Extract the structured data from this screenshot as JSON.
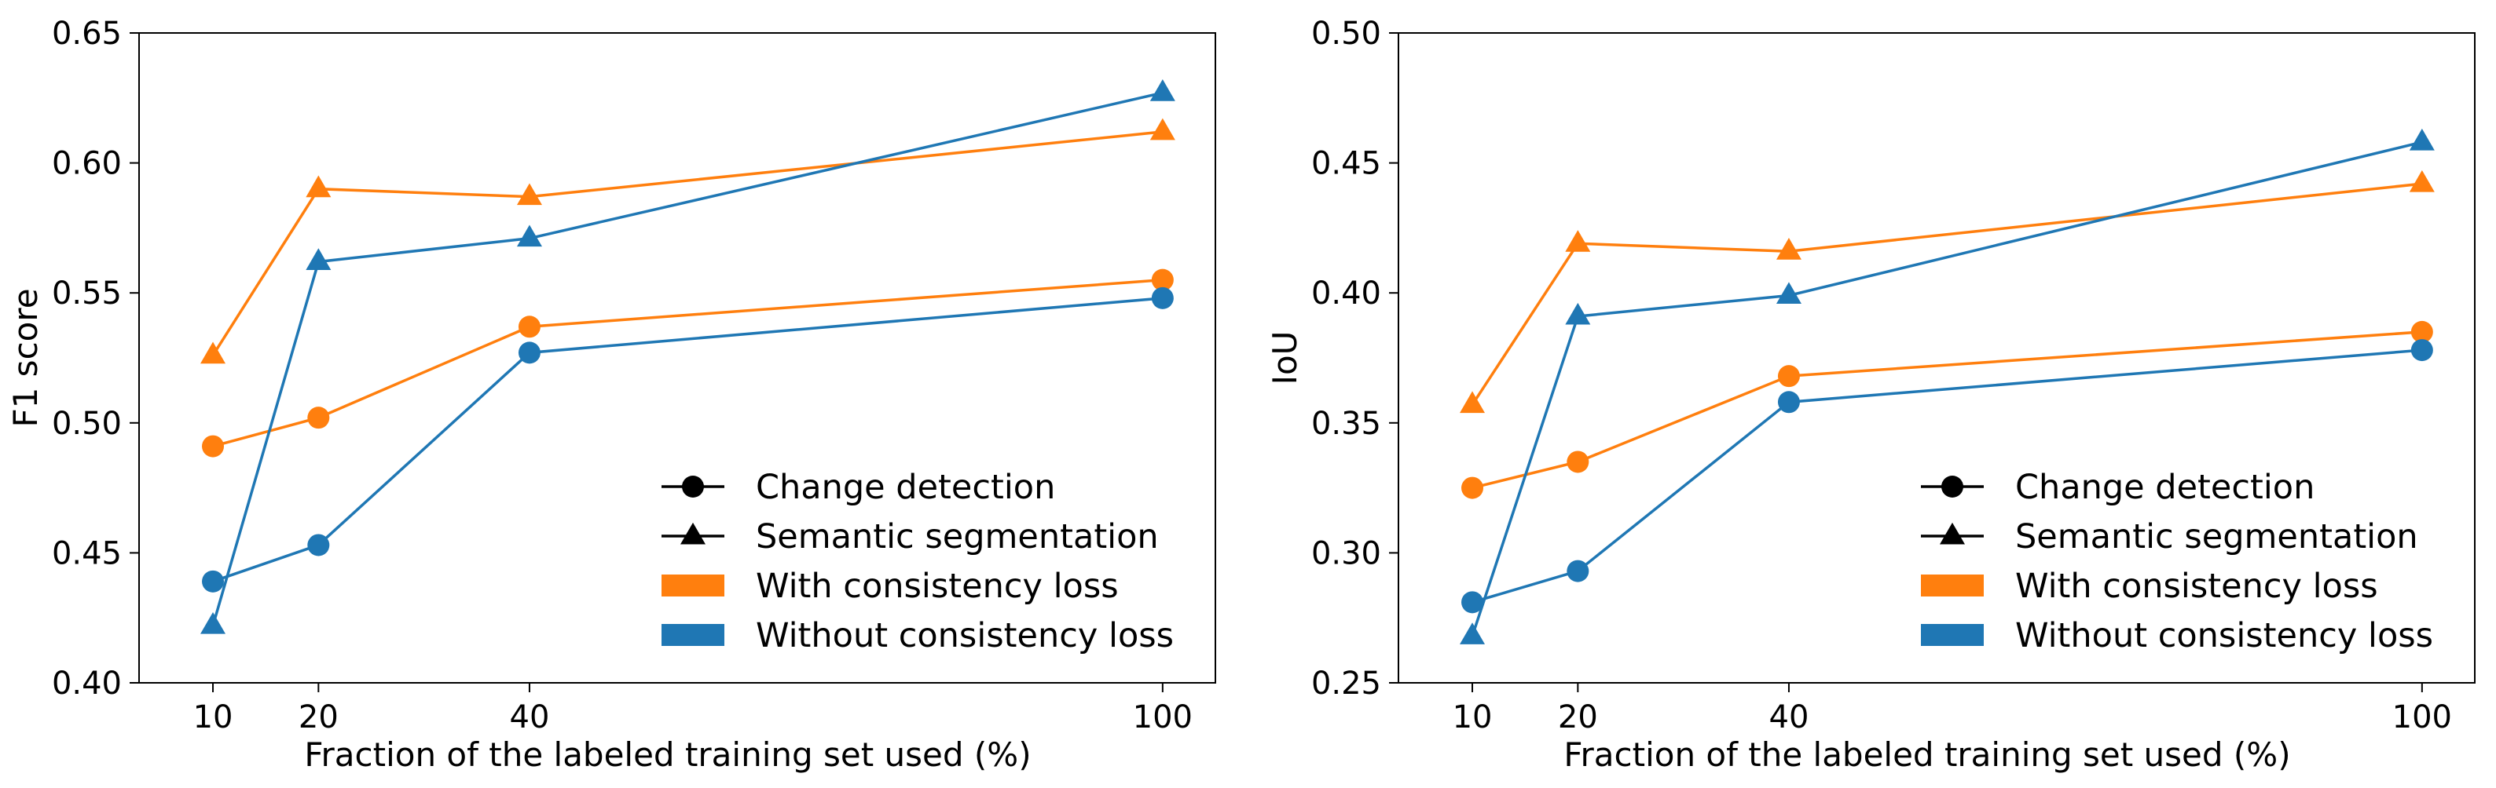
{
  "chart_data": [
    {
      "type": "line",
      "xlabel": "Fraction of the labeled training set used (%)",
      "ylabel": "F1 score",
      "x": [
        10,
        20,
        40,
        100
      ],
      "xticks": [
        "10",
        "20",
        "40",
        "100"
      ],
      "xlim": [
        3,
        105
      ],
      "ylim": [
        0.4,
        0.65
      ],
      "yticks": [
        "0.40",
        "0.45",
        "0.50",
        "0.55",
        "0.60",
        "0.65"
      ],
      "grid": false,
      "legend_position": "bottom-right",
      "series": [
        {
          "name": "Change detection, with consistency loss",
          "task": "change",
          "variant": "with",
          "values": [
            0.491,
            0.502,
            0.537,
            0.555
          ]
        },
        {
          "name": "Change detection, without consistency loss",
          "task": "change",
          "variant": "without",
          "values": [
            0.439,
            0.453,
            0.527,
            0.548
          ]
        },
        {
          "name": "Semantic segmentation, with consistency loss",
          "task": "semseg",
          "variant": "with",
          "values": [
            0.526,
            0.59,
            0.587,
            0.612
          ]
        },
        {
          "name": "Semantic segmentation, without consistency loss",
          "task": "semseg",
          "variant": "without",
          "values": [
            0.422,
            0.562,
            0.571,
            0.627
          ]
        }
      ]
    },
    {
      "type": "line",
      "xlabel": "Fraction of the labeled training set used (%)",
      "ylabel": "IoU",
      "x": [
        10,
        20,
        40,
        100
      ],
      "xticks": [
        "10",
        "20",
        "40",
        "100"
      ],
      "xlim": [
        3,
        105
      ],
      "ylim": [
        0.25,
        0.5
      ],
      "yticks": [
        "0.25",
        "0.30",
        "0.35",
        "0.40",
        "0.45",
        "0.50"
      ],
      "grid": false,
      "legend_position": "bottom-right",
      "series": [
        {
          "name": "Change detection, with consistency loss",
          "task": "change",
          "variant": "with",
          "values": [
            0.325,
            0.335,
            0.368,
            0.385
          ]
        },
        {
          "name": "Change detection, without consistency loss",
          "task": "change",
          "variant": "without",
          "values": [
            0.281,
            0.293,
            0.358,
            0.378
          ]
        },
        {
          "name": "Semantic segmentation, with consistency loss",
          "task": "semseg",
          "variant": "with",
          "values": [
            0.357,
            0.419,
            0.416,
            0.442
          ]
        },
        {
          "name": "Semantic segmentation, without consistency loss",
          "task": "semseg",
          "variant": "without",
          "values": [
            0.268,
            0.391,
            0.399,
            0.458
          ]
        }
      ]
    }
  ],
  "legend": {
    "items": [
      {
        "label": "Change detection",
        "kind": "marker",
        "marker": "circle",
        "color": "#000000"
      },
      {
        "label": "Semantic segmentation",
        "kind": "marker",
        "marker": "triangle",
        "color": "#000000"
      },
      {
        "label": "With consistency loss",
        "kind": "patch",
        "color": "#ff7f0e"
      },
      {
        "label": "Without consistency loss",
        "kind": "patch",
        "color": "#1f77b4"
      }
    ]
  },
  "colors": {
    "with": "#ff7f0e",
    "without": "#1f77b4"
  }
}
